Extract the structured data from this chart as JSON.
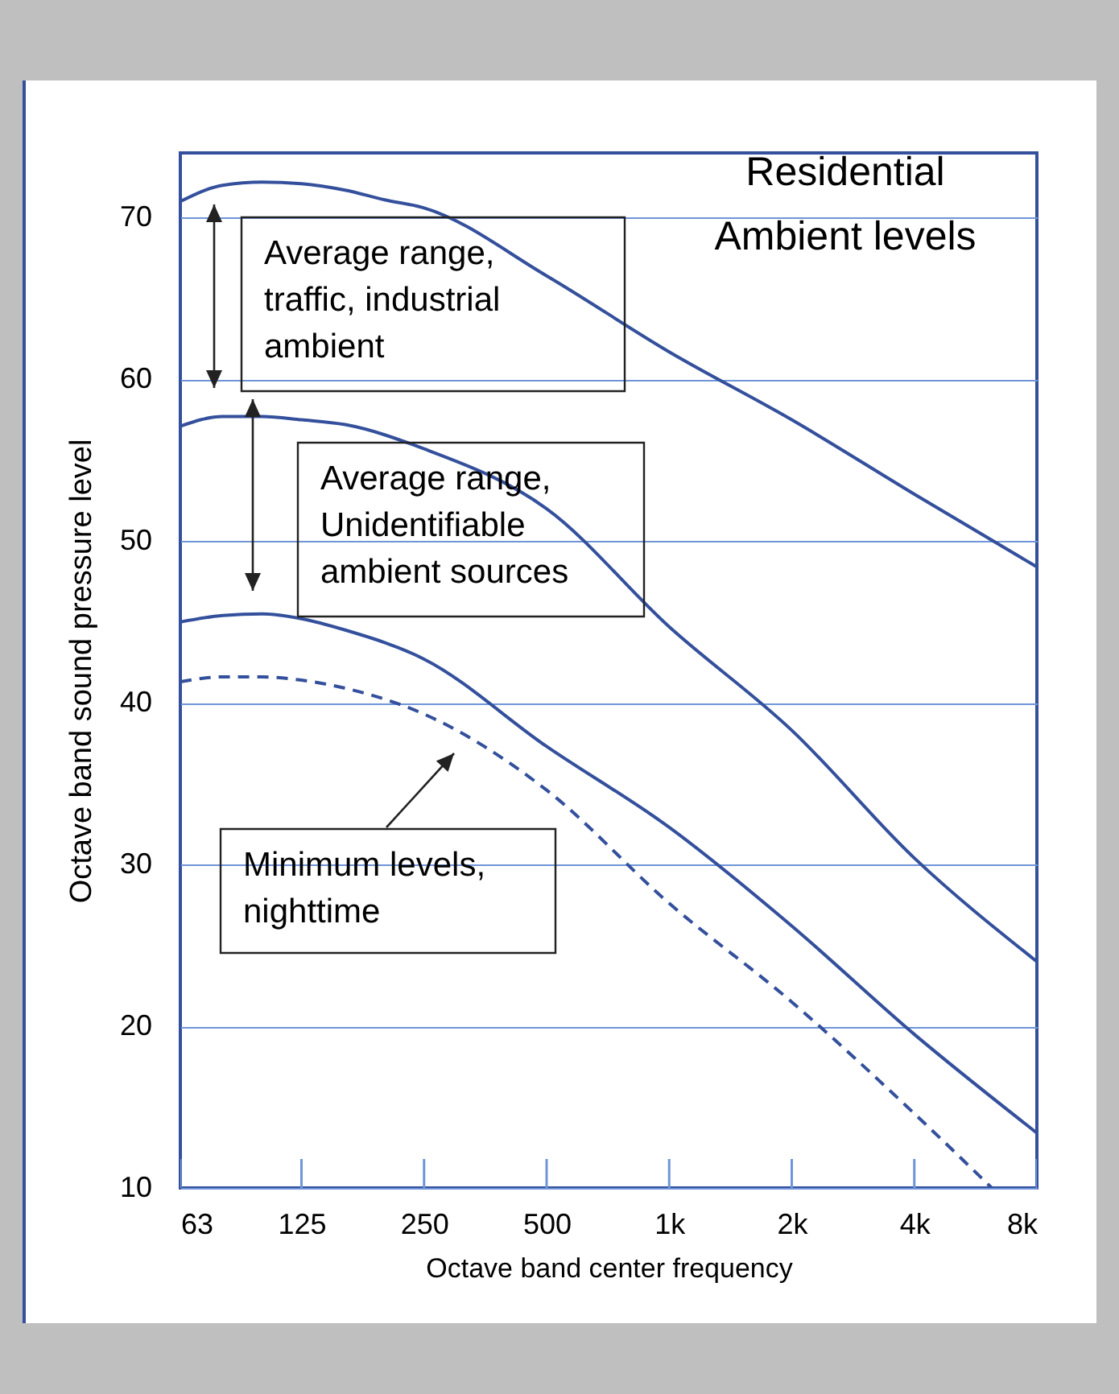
{
  "chart_data": {
    "type": "line",
    "title": "Residential\nAmbient levels",
    "xlabel": "Octave band center frequency",
    "ylabel": "Octave band sound pressure level",
    "log": "x",
    "xlim": [
      63,
      8000
    ],
    "xticks": [
      63,
      125,
      250,
      500,
      {
        "value": 1000,
        "label": "1k"
      },
      {
        "value": 2000,
        "label": "2k"
      },
      {
        "value": 4000,
        "label": "4k"
      },
      {
        "value": 8000,
        "label": "8k"
      }
    ],
    "ylim": [
      10,
      74
    ],
    "yticks": [
      10,
      20,
      30,
      40,
      50,
      60,
      70
    ],
    "grid": "y",
    "marker": "none",
    "annotations": [
      "Average range,\ntraffic, industrial\nambient",
      "Average range,\nUnidentifiable\nambient sources",
      "Minimum levels,\nnighttime"
    ],
    "series": [
      {
        "color": "#34509c",
        "line_style": "solid",
        "x": [
          63,
          80,
          100,
          125,
          160,
          200,
          250,
          500,
          1000,
          2000,
          4000,
          8000
        ],
        "values": [
          71.0,
          72.0,
          72.2,
          72.1,
          71.7,
          71.1,
          70.6,
          66.4,
          61.7,
          57.5,
          52.9,
          48.4
        ]
      },
      {
        "color": "#34509c",
        "line_style": "solid",
        "x": [
          63,
          80,
          100,
          125,
          160,
          250,
          500,
          1000,
          2000,
          4000,
          8000
        ],
        "values": [
          57.1,
          57.7,
          57.7,
          57.5,
          57.2,
          55.7,
          52.0,
          44.7,
          38.3,
          30.4,
          24.0
        ]
      },
      {
        "color": "#34509c",
        "line_style": "solid",
        "x": [
          63,
          80,
          100,
          125,
          160,
          250,
          500,
          1000,
          2000,
          4000,
          8000
        ],
        "values": [
          45.0,
          45.4,
          45.5,
          45.2,
          44.5,
          42.7,
          37.3,
          32.3,
          26.2,
          19.5,
          13.4
        ]
      },
      {
        "color": "#34509c",
        "line_style": "dashed",
        "x": [
          63,
          80,
          100,
          125,
          160,
          250,
          500,
          1000,
          2000,
          4000,
          6200
        ],
        "values": [
          41.3,
          41.6,
          41.6,
          41.4,
          40.9,
          39.3,
          34.6,
          27.6,
          21.5,
          14.6,
          10.0
        ]
      }
    ]
  }
}
